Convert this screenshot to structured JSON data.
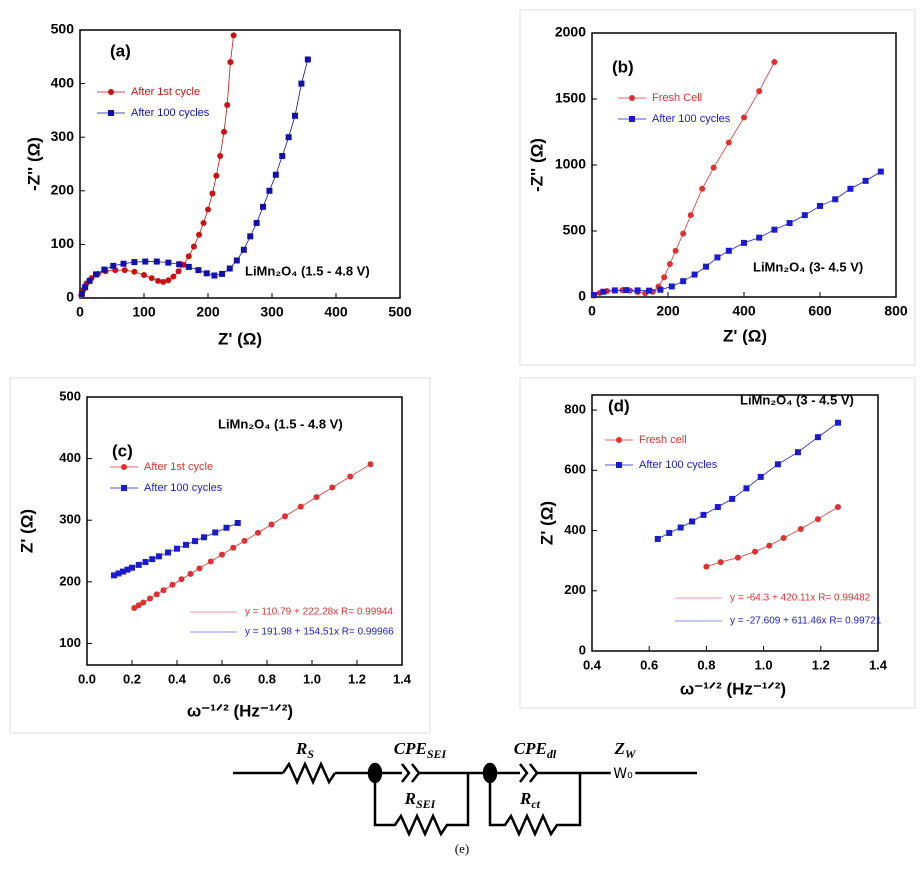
{
  "chart_data": [
    {
      "type": "line",
      "panel": "(a)",
      "title": "LiMn₂O₄ (1.5 - 4.8 V)",
      "x_label": "Z' (Ω)",
      "y_label": "-Z'' (Ω)",
      "xlim": [
        0,
        500
      ],
      "xticks": [
        0,
        100,
        200,
        300,
        400,
        500
      ],
      "ylim": [
        0,
        500
      ],
      "yticks": [
        0,
        100,
        200,
        300,
        400,
        500
      ],
      "series": [
        {
          "name": "After 1st cycle",
          "color": "#cc1111",
          "marker": "circle",
          "x": [
            2,
            5,
            10,
            18,
            28,
            40,
            55,
            70,
            85,
            100,
            112,
            122,
            130,
            138,
            146,
            154,
            162,
            170,
            178,
            186,
            193,
            200,
            207,
            213,
            219,
            225,
            230,
            235,
            240
          ],
          "values": [
            5,
            15,
            27,
            37,
            45,
            50,
            52,
            52,
            49,
            43,
            37,
            32,
            30,
            33,
            40,
            50,
            62,
            78,
            96,
            118,
            140,
            165,
            195,
            228,
            265,
            310,
            360,
            440,
            490
          ]
        },
        {
          "name": "After 100 cycles",
          "color": "#1111aa",
          "marker": "square",
          "x": [
            3,
            8,
            15,
            25,
            38,
            52,
            68,
            85,
            102,
            120,
            138,
            155,
            170,
            185,
            198,
            210,
            222,
            234,
            245,
            256,
            266,
            276,
            286,
            296,
            306,
            316,
            326,
            336,
            346,
            356
          ],
          "values": [
            8,
            20,
            32,
            44,
            53,
            60,
            64,
            67,
            68,
            68,
            66,
            63,
            58,
            52,
            46,
            42,
            45,
            55,
            70,
            90,
            115,
            140,
            170,
            200,
            230,
            265,
            300,
            340,
            400,
            445
          ]
        }
      ]
    },
    {
      "type": "line",
      "panel": "(b)",
      "title": "LiMn₂O₄ (3- 4.5 V)",
      "x_label": "Z' (Ω)",
      "y_label": "-Z'' (Ω)",
      "xlim": [
        0,
        800
      ],
      "xticks": [
        0,
        200,
        400,
        600,
        800
      ],
      "ylim": [
        0,
        2000
      ],
      "yticks": [
        0,
        500,
        1000,
        1500,
        2000
      ],
      "series": [
        {
          "name": "Fresh Cell",
          "color": "#e03030",
          "marker": "circle",
          "x": [
            5,
            20,
            40,
            60,
            80,
            100,
            120,
            140,
            160,
            175,
            190,
            205,
            220,
            240,
            260,
            290,
            320,
            360,
            400,
            440,
            480
          ],
          "values": [
            10,
            30,
            45,
            50,
            52,
            48,
            38,
            28,
            40,
            80,
            150,
            250,
            350,
            480,
            620,
            820,
            980,
            1170,
            1360,
            1560,
            1780
          ]
        },
        {
          "name": "After 100 cycles",
          "color": "#1a1ad0",
          "marker": "square",
          "x": [
            5,
            30,
            60,
            90,
            120,
            150,
            180,
            210,
            240,
            270,
            300,
            330,
            360,
            400,
            440,
            480,
            520,
            560,
            600,
            640,
            680,
            720,
            760
          ],
          "values": [
            15,
            40,
            50,
            52,
            50,
            48,
            55,
            80,
            120,
            170,
            230,
            300,
            350,
            410,
            450,
            510,
            560,
            620,
            690,
            740,
            820,
            880,
            950
          ]
        }
      ]
    },
    {
      "type": "line",
      "panel": "(c)",
      "title": "LiMn₂O₄ (1.5 - 4.8 V)",
      "x_label": "ω⁻¹ᐟ² (Hz⁻¹ᐟ²)",
      "y_label": "Z' (Ω)",
      "xlim": [
        0,
        1.4
      ],
      "xticks": [
        {
          "value": 0,
          "label": "0.0"
        },
        0.2,
        0.4,
        0.6,
        0.8,
        {
          "value": 1,
          "label": "1.0"
        },
        1.2,
        1.4
      ],
      "ylim": [
        65,
        500
      ],
      "yticks": [
        100,
        200,
        300,
        400,
        500
      ],
      "annotations": [
        {
          "text": "y = 110.79 + 222.28x   R= 0.99944",
          "color": "#e03030"
        },
        {
          "text": "y = 191.98 + 154.51x   R= 0.99966",
          "color": "#1a1ad0"
        }
      ],
      "series": [
        {
          "name": "After 1st cycle",
          "color": "#e03030",
          "marker": "circle",
          "x": [
            0.21,
            0.23,
            0.25,
            0.28,
            0.31,
            0.34,
            0.38,
            0.42,
            0.46,
            0.5,
            0.55,
            0.6,
            0.65,
            0.7,
            0.76,
            0.82,
            0.88,
            0.95,
            1.02,
            1.09,
            1.17,
            1.26
          ],
          "values": [
            157.5,
            161.9,
            166.4,
            173.0,
            179.7,
            186.4,
            195.3,
            204.2,
            213.0,
            221.9,
            233.0,
            244.2,
            255.3,
            266.4,
            279.7,
            293.1,
            306.4,
            322.0,
            337.5,
            353.1,
            370.9,
            390.9
          ]
        },
        {
          "name": "After 100 cycles",
          "color": "#1a1ad0",
          "marker": "square",
          "x": [
            0.12,
            0.14,
            0.16,
            0.18,
            0.2,
            0.23,
            0.26,
            0.29,
            0.32,
            0.36,
            0.4,
            0.44,
            0.48,
            0.52,
            0.57,
            0.62,
            0.67
          ],
          "values": [
            210.5,
            213.6,
            216.7,
            219.8,
            222.9,
            227.5,
            232.2,
            236.8,
            241.4,
            247.6,
            253.8,
            260.0,
            266.1,
            272.3,
            280.1,
            287.8,
            295.5
          ]
        }
      ]
    },
    {
      "type": "line",
      "panel": "(d)",
      "title": "LiMn₂O₄ (3 - 4.5 V)",
      "x_label": "ω⁻¹ᐟ² (Hz⁻¹ᐟ²)",
      "y_label": "Z' (Ω)",
      "xlim": [
        0.4,
        1.4
      ],
      "xticks": [
        0.4,
        0.6,
        0.8,
        {
          "value": 1,
          "label": "1.0"
        },
        1.2,
        1.4
      ],
      "ylim": [
        0,
        850
      ],
      "yticks": [
        0,
        200,
        400,
        600,
        800
      ],
      "annotations": [
        {
          "text": "y = -64.3 + 420.11x   R= 0.99482",
          "color": "#e03030"
        },
        {
          "text": "y = -27.609 + 611.46x   R= 0.99721",
          "color": "#1a1ad0"
        }
      ],
      "series": [
        {
          "name": "Fresh cell",
          "color": "#e03030",
          "marker": "circle",
          "x": [
            0.8,
            0.85,
            0.91,
            0.97,
            1.02,
            1.07,
            1.13,
            1.19,
            1.26
          ],
          "values": [
            280,
            295,
            310,
            330,
            350,
            375,
            405,
            438,
            478
          ]
        },
        {
          "name": "After 100 cycles",
          "color": "#1a1ad0",
          "marker": "square",
          "x": [
            0.63,
            0.67,
            0.71,
            0.75,
            0.79,
            0.84,
            0.89,
            0.94,
            0.99,
            1.05,
            1.12,
            1.19,
            1.26
          ],
          "values": [
            372,
            392,
            410,
            430,
            452,
            478,
            505,
            540,
            578,
            620,
            660,
            710,
            758
          ]
        }
      ]
    }
  ],
  "circuit": {
    "elements": [
      {
        "main": "R",
        "sub": "S"
      },
      {
        "main": "CPE",
        "sub": "SEI"
      },
      {
        "main": "CPE",
        "sub": "dl"
      },
      {
        "main": "Z",
        "sub": "W"
      },
      {
        "main": "R",
        "sub": "SEI"
      },
      {
        "main": "R",
        "sub": "ct"
      }
    ],
    "caption": "(e)"
  }
}
